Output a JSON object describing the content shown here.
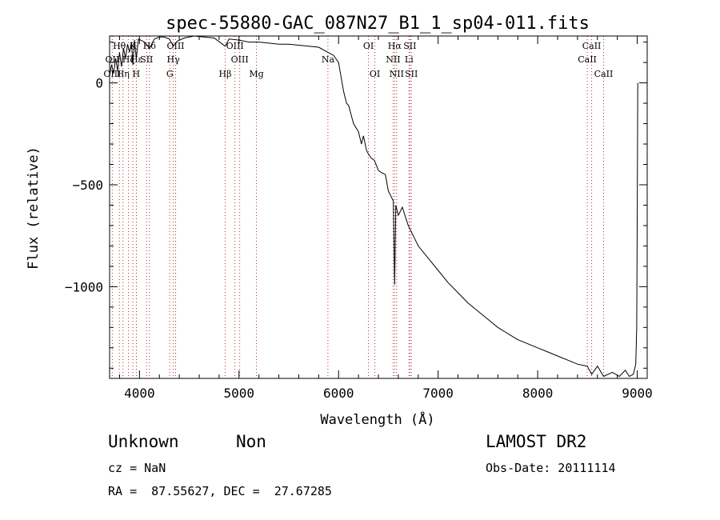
{
  "chart_data": {
    "type": "line",
    "title": "spec-55880-GAC_087N27_B1_1_sp04-011.fits",
    "xlabel": "Wavelength (Å)",
    "ylabel": "Flux (relative)",
    "xlim": [
      3700,
      9100
    ],
    "ylim": [
      -1450,
      230
    ],
    "x_ticks": [
      4000,
      5000,
      6000,
      7000,
      8000,
      9000
    ],
    "y_ticks": [
      0,
      -500,
      -1000
    ],
    "x_tick_labels": [
      "4000",
      "5000",
      "6000",
      "7000",
      "8000",
      "9000"
    ],
    "y_tick_labels": [
      "0",
      "−500",
      "−1000"
    ],
    "grid": false,
    "legend": "none",
    "series": [
      {
        "x": [
          3700,
          3720,
          3740,
          3760,
          3780,
          3800,
          3820,
          3840,
          3860,
          3880,
          3900,
          3920,
          3934,
          3950,
          3968,
          3990,
          4010,
          4050,
          4101,
          4150,
          4200,
          4250,
          4300,
          4340,
          4380,
          4450,
          4550,
          4650,
          4750,
          4861,
          4900,
          5000,
          5100,
          5200,
          5300,
          5400,
          5500,
          5600,
          5700,
          5800,
          5893,
          5950,
          6000,
          6050,
          6080,
          6100,
          6150,
          6200,
          6230,
          6250,
          6280,
          6300,
          6330,
          6360,
          6400,
          6430,
          6470,
          6500,
          6530,
          6550,
          6563,
          6575,
          6600,
          6640,
          6700,
          6750,
          6800,
          6900,
          7000,
          7100,
          7200,
          7300,
          7400,
          7500,
          7600,
          7700,
          7800,
          7900,
          8000,
          8100,
          8200,
          8300,
          8400,
          8498,
          8542,
          8600,
          8662,
          8750,
          8820,
          8880,
          8920,
          8960,
          8985,
          8995,
          9000,
          9005
        ],
        "y": [
          35,
          90,
          45,
          120,
          60,
          150,
          80,
          170,
          120,
          190,
          150,
          200,
          90,
          210,
          120,
          215,
          210,
          200,
          170,
          215,
          225,
          225,
          215,
          180,
          205,
          220,
          230,
          225,
          220,
          180,
          215,
          210,
          200,
          200,
          195,
          190,
          190,
          185,
          180,
          175,
          150,
          135,
          100,
          -40,
          -100,
          -110,
          -200,
          -240,
          -300,
          -260,
          -330,
          -350,
          -370,
          -380,
          -430,
          -440,
          -450,
          -530,
          -560,
          -580,
          -990,
          -600,
          -650,
          -610,
          -700,
          -750,
          -800,
          -860,
          -920,
          -980,
          -1030,
          -1080,
          -1120,
          -1160,
          -1200,
          -1230,
          -1260,
          -1280,
          -1300,
          -1320,
          -1340,
          -1360,
          -1380,
          -1390,
          -1430,
          -1390,
          -1440,
          -1420,
          -1440,
          -1410,
          -1440,
          -1430,
          -1380,
          -1200,
          -600,
          0
        ]
      }
    ],
    "spectral_lines": [
      {
        "label": "Hθ",
        "x": 3798,
        "row": 0
      },
      {
        "label": "OII",
        "x": 3727,
        "row": 1
      },
      {
        "label": "OIII",
        "x": 3727,
        "row": 2
      },
      {
        "label": "Hη",
        "x": 3835,
        "row": 2
      },
      {
        "label": "Hζ",
        "x": 3889,
        "row": 1
      },
      {
        "label": "Hε",
        "x": 3970,
        "row": 1
      },
      {
        "label": "K",
        "x": 3934,
        "row": 0
      },
      {
        "label": "H",
        "x": 3968,
        "row": 2
      },
      {
        "label": "Hδ",
        "x": 4101,
        "row": 0
      },
      {
        "label": "SII",
        "x": 4072,
        "row": 1
      },
      {
        "label": "OIII",
        "x": 4363,
        "row": 0
      },
      {
        "label": "Hγ",
        "x": 4340,
        "row": 1
      },
      {
        "label": "G",
        "x": 4305,
        "row": 2
      },
      {
        "label": "OIII",
        "x": 4959,
        "row": 0
      },
      {
        "label": "OIII",
        "x": 5007,
        "row": 1
      },
      {
        "label": "Hβ",
        "x": 4861,
        "row": 2
      },
      {
        "label": "Mg",
        "x": 5175,
        "row": 2
      },
      {
        "label": "Na",
        "x": 5893,
        "row": 1
      },
      {
        "label": "OI",
        "x": 6300,
        "row": 0
      },
      {
        "label": "OI",
        "x": 6364,
        "row": 2
      },
      {
        "label": "Hα",
        "x": 6563,
        "row": 0
      },
      {
        "label": "NII",
        "x": 6548,
        "row": 1
      },
      {
        "label": "NII",
        "x": 6583,
        "row": 2
      },
      {
        "label": "SII",
        "x": 6716,
        "row": 0
      },
      {
        "label": "Li",
        "x": 6708,
        "row": 1
      },
      {
        "label": "SII",
        "x": 6731,
        "row": 2
      },
      {
        "label": "CaII",
        "x": 8542,
        "row": 0
      },
      {
        "label": "CaII",
        "x": 8498,
        "row": 1
      },
      {
        "label": "CaII",
        "x": 8662,
        "row": 2
      }
    ]
  },
  "info": {
    "class": "Unknown",
    "subclass": "Non",
    "survey": "LAMOST DR2",
    "cz": "cz = NaN",
    "obs_date": "Obs-Date: 20111114",
    "position": "RA =  87.55627, DEC =  27.67285"
  },
  "colors": {
    "line": "#000000",
    "marker_lines": "#b03030",
    "background": "#ffffff"
  }
}
